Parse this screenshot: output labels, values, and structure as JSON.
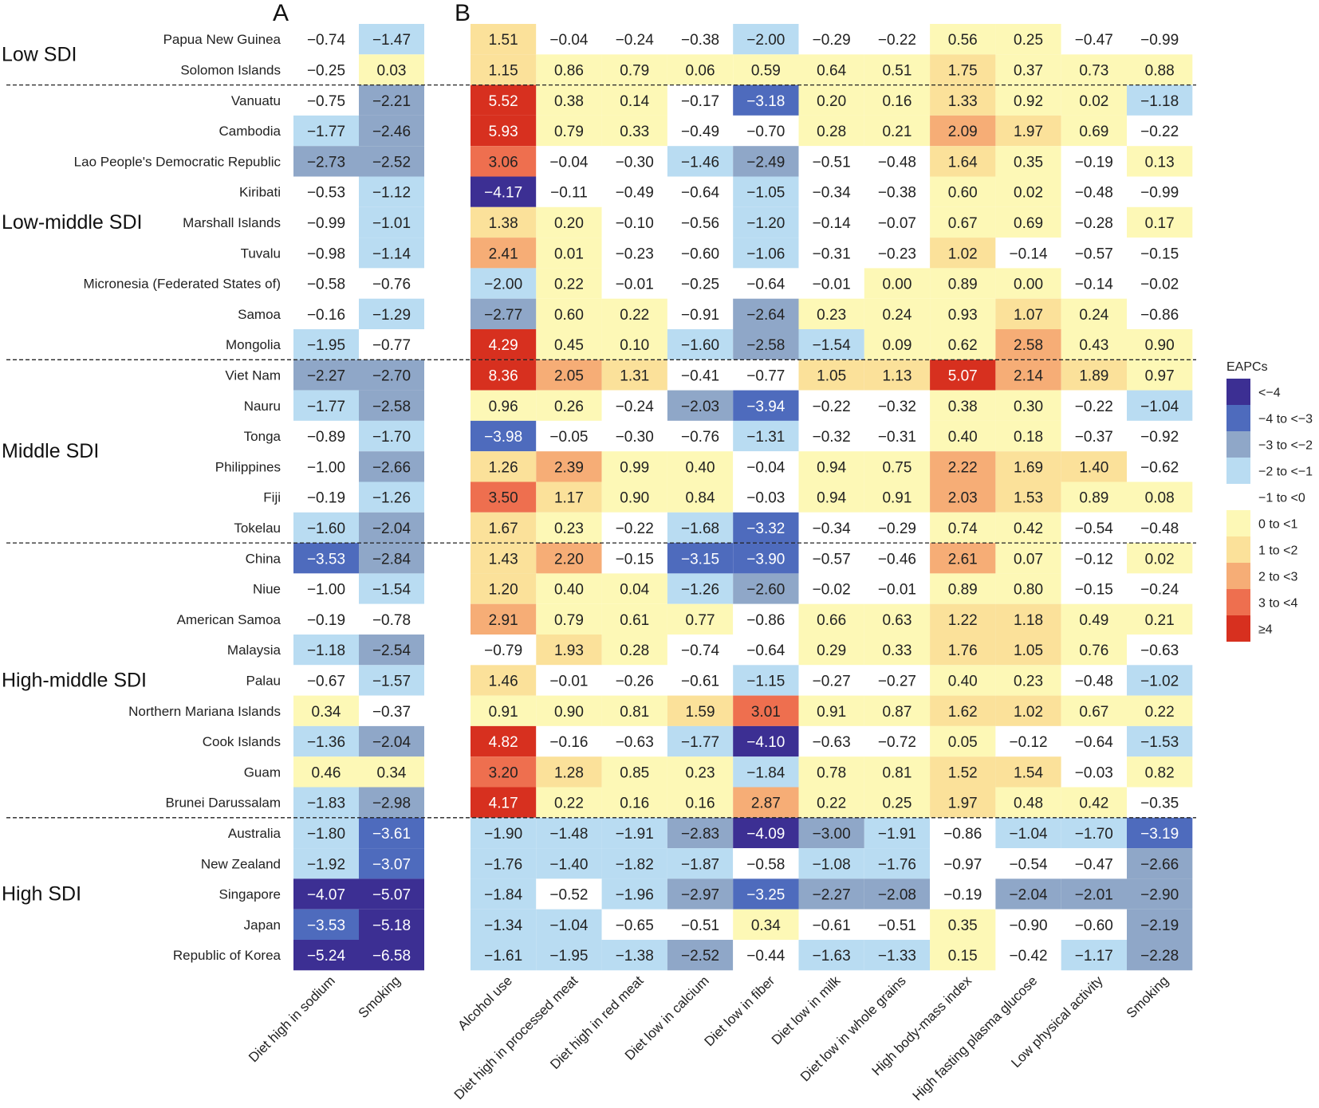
{
  "colors": {
    "lt_m4": "#3c2f93",
    "m4_m3": "#4e6bbd",
    "m3_m2": "#8fa7c8",
    "m2_m1": "#b9dcf2",
    "m1_0": "#ffffff",
    "z0_1": "#fdf8b6",
    "p1_2": "#fbe19a",
    "p2_3": "#f6ad76",
    "p3_4": "#ee6f4f",
    "ge4": "#d7301f"
  },
  "chart_data": {
    "type": "heatmap",
    "panels": [
      "A",
      "B"
    ],
    "rows": [
      "Papua New Guinea",
      "Solomon Islands",
      "Vanuatu",
      "Cambodia",
      "Lao People's Democratic Republic",
      "Kiribati",
      "Marshall Islands",
      "Tuvalu",
      "Micronesia (Federated States of)",
      "Samoa",
      "Mongolia",
      "Viet Nam",
      "Nauru",
      "Tonga",
      "Philippines",
      "Fiji",
      "Tokelau",
      "China",
      "Niue",
      "American Samoa",
      "Malaysia",
      "Palau",
      "Northern Mariana Islands",
      "Cook Islands",
      "Guam",
      "Brunei Darussalam",
      "Australia",
      "New Zealand",
      "Singapore",
      "Japan",
      "Republic of Korea"
    ],
    "groups": [
      {
        "label": "Low SDI",
        "start": 0,
        "end": 1
      },
      {
        "label": "Low-middle SDI",
        "start": 2,
        "end": 10
      },
      {
        "label": "Middle SDI",
        "start": 11,
        "end": 16
      },
      {
        "label": "High-middle SDI",
        "start": 17,
        "end": 25
      },
      {
        "label": "High SDI",
        "start": 26,
        "end": 30
      }
    ],
    "panelA_columns": [
      "Diet high in sodium",
      "Smoking"
    ],
    "panelA_values": [
      [
        -0.74,
        -1.47
      ],
      [
        -0.25,
        0.03
      ],
      [
        -0.75,
        -2.21
      ],
      [
        -1.77,
        -2.46
      ],
      [
        -2.73,
        -2.52
      ],
      [
        -0.53,
        -1.12
      ],
      [
        -0.99,
        -1.01
      ],
      [
        -0.98,
        -1.14
      ],
      [
        -0.58,
        -0.76
      ],
      [
        -0.16,
        -1.29
      ],
      [
        -1.95,
        -0.77
      ],
      [
        -2.27,
        -2.7
      ],
      [
        -1.77,
        -2.58
      ],
      [
        -0.89,
        -1.7
      ],
      [
        -1.0,
        -2.66
      ],
      [
        -0.19,
        -1.26
      ],
      [
        -1.6,
        -2.04
      ],
      [
        -3.53,
        -2.84
      ],
      [
        -1.0,
        -1.54
      ],
      [
        -0.19,
        -0.78
      ],
      [
        -1.18,
        -2.54
      ],
      [
        -0.67,
        -1.57
      ],
      [
        0.34,
        -0.37
      ],
      [
        -1.36,
        -2.04
      ],
      [
        0.46,
        0.34
      ],
      [
        -1.83,
        -2.98
      ],
      [
        -1.8,
        -3.61
      ],
      [
        -1.92,
        -3.07
      ],
      [
        -4.07,
        -5.07
      ],
      [
        -3.53,
        -5.18
      ],
      [
        -5.24,
        -6.58
      ]
    ],
    "panelB_columns": [
      "Alcohol use",
      "Diet high in processed meat",
      "Diet high in red meat",
      "Diet low in calcium",
      "Diet low in fiber",
      "Diet low in milk",
      "Diet low in whole grains",
      "High body-mass index",
      "High fasting plasma glucose",
      "Low physical activity",
      "Smoking"
    ],
    "panelB_values": [
      [
        1.51,
        -0.04,
        -0.24,
        -0.38,
        -2.0,
        -0.29,
        -0.22,
        0.56,
        0.25,
        -0.47,
        -0.99
      ],
      [
        1.15,
        0.86,
        0.79,
        0.06,
        0.59,
        0.64,
        0.51,
        1.75,
        0.37,
        0.73,
        0.88
      ],
      [
        5.52,
        0.38,
        0.14,
        -0.17,
        -3.18,
        0.2,
        0.16,
        1.33,
        0.92,
        0.02,
        -1.18
      ],
      [
        5.93,
        0.79,
        0.33,
        -0.49,
        -0.7,
        0.28,
        0.21,
        2.09,
        1.97,
        0.69,
        -0.22
      ],
      [
        3.06,
        -0.04,
        -0.3,
        -1.46,
        -2.49,
        -0.51,
        -0.48,
        1.64,
        0.35,
        -0.19,
        0.13
      ],
      [
        -4.17,
        -0.11,
        -0.49,
        -0.64,
        -1.05,
        -0.34,
        -0.38,
        0.6,
        0.02,
        -0.48,
        -0.99
      ],
      [
        1.38,
        0.2,
        -0.1,
        -0.56,
        -1.2,
        -0.14,
        -0.07,
        0.67,
        0.69,
        -0.28,
        0.17
      ],
      [
        2.41,
        0.01,
        -0.23,
        -0.6,
        -1.06,
        -0.31,
        -0.23,
        1.02,
        -0.14,
        -0.57,
        -0.15
      ],
      [
        -2.0,
        0.22,
        -0.01,
        -0.25,
        -0.64,
        -0.01,
        0.0,
        0.89,
        0.0,
        -0.14,
        -0.02
      ],
      [
        -2.77,
        0.6,
        0.22,
        -0.91,
        -2.64,
        0.23,
        0.24,
        0.93,
        1.07,
        0.24,
        -0.86
      ],
      [
        4.29,
        0.45,
        0.1,
        -1.6,
        -2.58,
        -1.54,
        0.09,
        0.62,
        2.58,
        0.43,
        0.9
      ],
      [
        8.36,
        2.05,
        1.31,
        -0.41,
        -0.77,
        1.05,
        1.13,
        5.07,
        2.14,
        1.89,
        0.97
      ],
      [
        0.96,
        0.26,
        -0.24,
        -2.03,
        -3.94,
        -0.22,
        -0.32,
        0.38,
        0.3,
        -0.22,
        -1.04
      ],
      [
        -3.98,
        -0.05,
        -0.3,
        -0.76,
        -1.31,
        -0.32,
        -0.31,
        0.4,
        0.18,
        -0.37,
        -0.92
      ],
      [
        1.26,
        2.39,
        0.99,
        0.4,
        -0.04,
        0.94,
        0.75,
        2.22,
        1.69,
        1.4,
        -0.62
      ],
      [
        3.5,
        1.17,
        0.9,
        0.84,
        -0.03,
        0.94,
        0.91,
        2.03,
        1.53,
        0.89,
        0.08
      ],
      [
        1.67,
        0.23,
        -0.22,
        -1.68,
        -3.32,
        -0.34,
        -0.29,
        0.74,
        0.42,
        -0.54,
        -0.48
      ],
      [
        1.43,
        2.2,
        -0.15,
        -3.15,
        -3.9,
        -0.57,
        -0.46,
        2.61,
        0.07,
        -0.12,
        0.02
      ],
      [
        1.2,
        0.4,
        0.04,
        -1.26,
        -2.6,
        -0.02,
        -0.01,
        0.89,
        0.8,
        -0.15,
        -0.24
      ],
      [
        2.91,
        0.79,
        0.61,
        0.77,
        -0.86,
        0.66,
        0.63,
        1.22,
        1.18,
        0.49,
        0.21
      ],
      [
        -0.79,
        1.93,
        0.28,
        -0.74,
        -0.64,
        0.29,
        0.33,
        1.76,
        1.05,
        0.76,
        -0.63
      ],
      [
        1.46,
        -0.01,
        -0.26,
        -0.61,
        -1.15,
        -0.27,
        -0.27,
        0.4,
        0.23,
        -0.48,
        -1.02
      ],
      [
        0.91,
        0.9,
        0.81,
        1.59,
        3.01,
        0.91,
        0.87,
        1.62,
        1.02,
        0.67,
        0.22
      ],
      [
        4.82,
        -0.16,
        -0.63,
        -1.77,
        -4.1,
        -0.63,
        -0.72,
        0.05,
        -0.12,
        -0.64,
        -1.53
      ],
      [
        3.2,
        1.28,
        0.85,
        0.23,
        -1.84,
        0.78,
        0.81,
        1.52,
        1.54,
        -0.03,
        0.82
      ],
      [
        4.17,
        0.22,
        0.16,
        0.16,
        2.87,
        0.22,
        0.25,
        1.97,
        0.48,
        0.42,
        -0.35
      ],
      [
        -1.9,
        -1.48,
        -1.91,
        -2.83,
        -4.09,
        -3.0,
        -1.91,
        -0.86,
        -1.04,
        -1.7,
        -3.19
      ],
      [
        -1.76,
        -1.4,
        -1.82,
        -1.87,
        -0.58,
        -1.08,
        -1.76,
        -0.97,
        -0.54,
        -0.47,
        -2.66
      ],
      [
        -1.84,
        -0.52,
        -1.96,
        -2.97,
        -3.25,
        -2.27,
        -2.08,
        -0.19,
        -2.04,
        -2.01,
        -2.9
      ],
      [
        -1.34,
        -1.04,
        -0.65,
        -0.51,
        0.34,
        -0.61,
        -0.51,
        0.35,
        -0.9,
        -0.6,
        -2.19
      ],
      [
        -1.61,
        -1.95,
        -1.38,
        -2.52,
        -0.44,
        -1.63,
        -1.33,
        0.15,
        -0.42,
        -1.17,
        -2.28
      ]
    ],
    "legend": {
      "title": "EAPCs",
      "placement": "right",
      "items": [
        "<-4",
        "-4 to <-3",
        "-3 to <-2",
        "-2 to <-1",
        "-1 to <0",
        "0 to <1",
        "1 to <2",
        "2 to <3",
        "3 to <4",
        "≥4"
      ]
    }
  }
}
